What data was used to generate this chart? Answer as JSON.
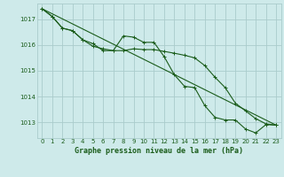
{
  "title": "Graphe pression niveau de la mer (hPa)",
  "xlim": [
    -0.5,
    23.5
  ],
  "ylim": [
    1012.4,
    1017.6
  ],
  "yticks": [
    1013,
    1014,
    1015,
    1016,
    1017
  ],
  "xticks": [
    0,
    1,
    2,
    3,
    4,
    5,
    6,
    7,
    8,
    9,
    10,
    11,
    12,
    13,
    14,
    15,
    16,
    17,
    18,
    19,
    20,
    21,
    22,
    23
  ],
  "background_color": "#ceeaea",
  "grid_color": "#aacccc",
  "line_color": "#1a5c1a",
  "line1_x": [
    0,
    1,
    2,
    3,
    4,
    5,
    6,
    7,
    8,
    9,
    10,
    11,
    12,
    13,
    14,
    15,
    16,
    17,
    18,
    19,
    20,
    21,
    22,
    23
  ],
  "line1_y": [
    1017.4,
    1017.1,
    1016.65,
    1016.55,
    1016.2,
    1015.95,
    1015.85,
    1015.78,
    1015.78,
    1015.85,
    1015.82,
    1015.82,
    1015.75,
    1015.68,
    1015.6,
    1015.5,
    1015.2,
    1014.75,
    1014.35,
    1013.75,
    1013.45,
    1013.15,
    1012.95,
    1012.9
  ],
  "line2_x": [
    0,
    1,
    2,
    3,
    4,
    5,
    6,
    7,
    8,
    9,
    10,
    11,
    12,
    13,
    14,
    15,
    16,
    17,
    18,
    19,
    20,
    21,
    22,
    23
  ],
  "line2_y": [
    1017.4,
    1017.1,
    1016.65,
    1016.55,
    1016.2,
    1016.05,
    1015.78,
    1015.78,
    1016.35,
    1016.3,
    1016.1,
    1016.1,
    1015.55,
    1014.85,
    1014.4,
    1014.35,
    1013.65,
    1013.2,
    1013.1,
    1013.1,
    1012.75,
    1012.6,
    1012.92,
    1012.9
  ],
  "line3_x": [
    0,
    23
  ],
  "line3_y": [
    1017.4,
    1012.9
  ]
}
